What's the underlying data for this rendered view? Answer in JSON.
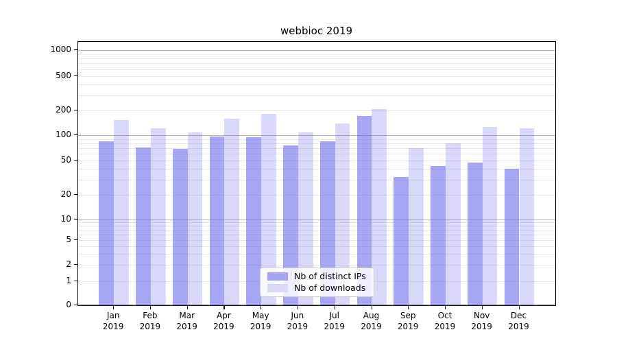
{
  "title": "webbioc 2019",
  "chart_data": {
    "type": "bar",
    "title": "webbioc 2019",
    "yscale": "symlog",
    "ylim": [
      0,
      1260
    ],
    "grid": true,
    "legend_position": "lower center",
    "categories": [
      {
        "month": "Jan",
        "year": "2019"
      },
      {
        "month": "Feb",
        "year": "2019"
      },
      {
        "month": "Mar",
        "year": "2019"
      },
      {
        "month": "Apr",
        "year": "2019"
      },
      {
        "month": "May",
        "year": "2019"
      },
      {
        "month": "Jun",
        "year": "2019"
      },
      {
        "month": "Jul",
        "year": "2019"
      },
      {
        "month": "Aug",
        "year": "2019"
      },
      {
        "month": "Sep",
        "year": "2019"
      },
      {
        "month": "Oct",
        "year": "2019"
      },
      {
        "month": "Nov",
        "year": "2019"
      },
      {
        "month": "Dec",
        "year": "2019"
      }
    ],
    "series": [
      {
        "name": "Nb of distinct IPs",
        "values": [
          84,
          71,
          68,
          97,
          95,
          75,
          84,
          172,
          32,
          43,
          47,
          40
        ],
        "fill_color": "rgba(92,92,237,0.55)",
        "legend_color": "#a5a5f3"
      },
      {
        "name": "Nb of downloads",
        "values": [
          152,
          121,
          109,
          159,
          181,
          109,
          139,
          208,
          70,
          80,
          126,
          122
        ],
        "fill_color": "rgba(92,92,237,0.24)",
        "legend_color": "#d8d8f9"
      }
    ],
    "y_ticks": [
      0,
      1,
      2,
      5,
      10,
      20,
      50,
      100,
      200,
      500,
      1000
    ],
    "gridlines_major": [
      0,
      10,
      100,
      1000
    ],
    "gridlines_minor": [
      1,
      2,
      3,
      4,
      5,
      6,
      7,
      8,
      9,
      20,
      30,
      40,
      50,
      60,
      70,
      80,
      90,
      200,
      300,
      400,
      500,
      600,
      700,
      800,
      900
    ]
  }
}
